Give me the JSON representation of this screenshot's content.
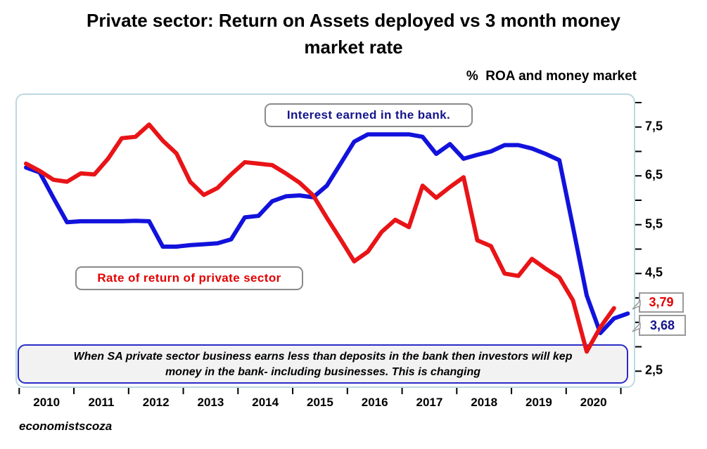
{
  "title": {
    "line1": "Private sector: Return on Assets deployed vs 3 month money",
    "line2": "market rate"
  },
  "axis_title": "%  ROA and money market",
  "credit": "economistscoza",
  "labels": {
    "interest": "Interest earned in the bank.",
    "rate_of_return": "Rate of return of private sector"
  },
  "note": {
    "line1": "When SA private sector business earns less than deposits in the bank then investors will kep",
    "line2": "money in the bank- including businesses. This is changing"
  },
  "callouts": {
    "red": "3,79",
    "blue": "3,68"
  },
  "colors": {
    "red_line": "#e81417",
    "blue_line": "#1212dc",
    "red_text": "#e30000",
    "navy_text": "#14148c",
    "frame_border": "#bcd9e2",
    "note_border": "#2a2ac8",
    "callout_border": "#9a9a9a"
  },
  "chart_data": {
    "type": "line",
    "title": "Private sector: Return on Assets deployed vs 3 month money market rate",
    "subtitle_axis_label": "% ROA and money market",
    "grid": false,
    "legend_position": "in-plot text boxes",
    "y_axis": {
      "side": "right",
      "min": 2.1,
      "max": 8.2,
      "tick_step": 0.5,
      "tick_values": [
        8.0,
        7.5,
        7.0,
        6.5,
        6.0,
        5.5,
        5.0,
        4.5,
        4.0,
        3.5,
        3.0,
        2.5
      ],
      "labeled_ticks": [
        {
          "value": 7.5,
          "label": "7,5"
        },
        {
          "value": 6.5,
          "label": "6,5"
        },
        {
          "value": 5.5,
          "label": "5,5"
        },
        {
          "value": 4.5,
          "label": "4,5"
        },
        {
          "value": 2.5,
          "label": "2,5"
        }
      ],
      "decimal_separator": ","
    },
    "x_axis": {
      "start_year": 2010,
      "end_tick_year": 2021,
      "tick_labels": [
        "2010",
        "2011",
        "2012",
        "2013",
        "2014",
        "2015",
        "2016",
        "2017",
        "2018",
        "2019",
        "2020"
      ],
      "frequency": "quarterly"
    },
    "series": [
      {
        "name": "Interest earned in the bank.",
        "color_key": "blue_line",
        "start": "2010Q1",
        "frequency": "quarterly",
        "values": [
          6.67,
          6.57,
          6.05,
          5.55,
          5.57,
          5.57,
          5.57,
          5.57,
          5.58,
          5.57,
          5.05,
          5.05,
          5.08,
          5.1,
          5.12,
          5.2,
          5.65,
          5.68,
          5.98,
          6.08,
          6.1,
          6.06,
          6.3,
          6.75,
          7.2,
          7.35,
          7.35,
          7.35,
          7.35,
          7.3,
          6.95,
          7.15,
          6.85,
          6.93,
          7.0,
          7.13,
          7.13,
          7.06,
          6.95,
          6.82,
          5.45,
          4.05,
          3.28,
          3.58,
          3.68
        ]
      },
      {
        "name": "Rate of return of private sector",
        "color_key": "red_line",
        "start": "2010Q1",
        "frequency": "quarterly",
        "values": [
          6.75,
          6.6,
          6.42,
          6.38,
          6.55,
          6.53,
          6.85,
          7.27,
          7.3,
          7.55,
          7.22,
          6.96,
          6.38,
          6.11,
          6.25,
          6.53,
          6.78,
          6.75,
          6.72,
          6.55,
          6.36,
          6.1,
          5.64,
          5.2,
          4.75,
          4.95,
          5.35,
          5.6,
          5.45,
          6.3,
          6.05,
          6.27,
          6.47,
          5.18,
          5.06,
          4.5,
          4.45,
          4.8,
          4.6,
          4.42,
          3.95,
          2.9,
          3.4,
          3.79
        ]
      }
    ],
    "end_value_callouts": [
      {
        "series": "Rate of return of private sector",
        "label": "3,79",
        "value": 3.79
      },
      {
        "series": "Interest earned in the bank.",
        "label": "3,68",
        "value": 3.68
      }
    ]
  }
}
